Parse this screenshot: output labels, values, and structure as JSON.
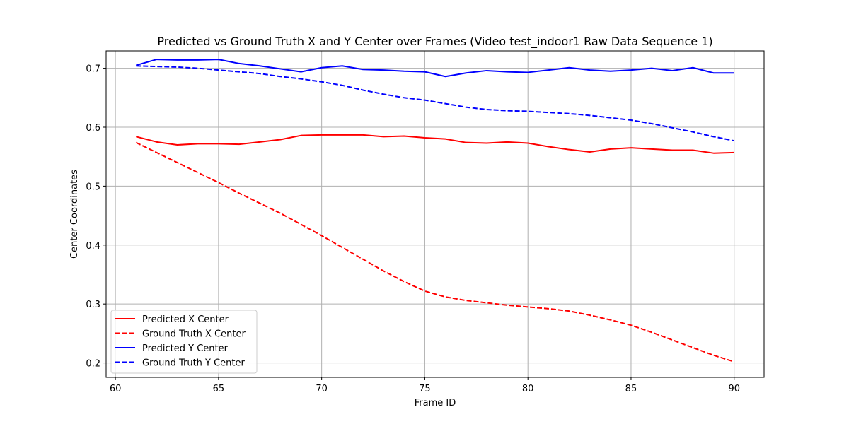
{
  "chart_data": {
    "type": "line",
    "title": "Predicted vs Ground Truth X and Y Center over Frames (Video test_indoor1 Raw Data Sequence 1)",
    "xlabel": "Frame ID",
    "ylabel": "Center Coordinates",
    "xlim": [
      59.55,
      91.45
    ],
    "ylim": [
      0.1755,
      0.7295
    ],
    "xticks": [
      60,
      65,
      70,
      75,
      80,
      85,
      90
    ],
    "yticks": [
      0.2,
      0.3,
      0.4,
      0.5,
      0.6,
      0.7
    ],
    "grid": true,
    "legend_position": "lower-left",
    "x": [
      61,
      62,
      63,
      64,
      65,
      66,
      67,
      68,
      69,
      70,
      71,
      72,
      73,
      74,
      75,
      76,
      77,
      78,
      79,
      80,
      81,
      82,
      83,
      84,
      85,
      86,
      87,
      88,
      89,
      90
    ],
    "series": [
      {
        "name": "Predicted X Center",
        "color": "#ff0000",
        "dash": "solid",
        "values": [
          0.584,
          0.575,
          0.57,
          0.572,
          0.572,
          0.571,
          0.575,
          0.579,
          0.586,
          0.587,
          0.587,
          0.587,
          0.584,
          0.585,
          0.582,
          0.58,
          0.574,
          0.573,
          0.575,
          0.573,
          0.567,
          0.562,
          0.558,
          0.563,
          0.565,
          0.563,
          0.561,
          0.561,
          0.556,
          0.557
        ]
      },
      {
        "name": "Ground Truth X Center",
        "color": "#ff0000",
        "dash": "dashed",
        "values": [
          0.574,
          0.557,
          0.54,
          0.523,
          0.506,
          0.488,
          0.471,
          0.454,
          0.435,
          0.416,
          0.396,
          0.376,
          0.356,
          0.338,
          0.322,
          0.312,
          0.306,
          0.302,
          0.298,
          0.295,
          0.292,
          0.288,
          0.281,
          0.273,
          0.264,
          0.252,
          0.239,
          0.226,
          0.213,
          0.202
        ]
      },
      {
        "name": "Predicted Y Center",
        "color": "#0000ff",
        "dash": "solid",
        "values": [
          0.705,
          0.715,
          0.714,
          0.714,
          0.715,
          0.708,
          0.704,
          0.699,
          0.694,
          0.701,
          0.704,
          0.698,
          0.697,
          0.695,
          0.694,
          0.686,
          0.692,
          0.696,
          0.694,
          0.693,
          0.697,
          0.701,
          0.697,
          0.695,
          0.697,
          0.7,
          0.696,
          0.701,
          0.692,
          0.692
        ]
      },
      {
        "name": "Ground Truth Y Center",
        "color": "#0000ff",
        "dash": "dashed",
        "values": [
          0.704,
          0.703,
          0.702,
          0.7,
          0.697,
          0.694,
          0.691,
          0.686,
          0.682,
          0.677,
          0.671,
          0.663,
          0.656,
          0.65,
          0.646,
          0.64,
          0.634,
          0.63,
          0.628,
          0.627,
          0.625,
          0.623,
          0.62,
          0.616,
          0.612,
          0.606,
          0.599,
          0.592,
          0.584,
          0.577
        ]
      }
    ]
  }
}
